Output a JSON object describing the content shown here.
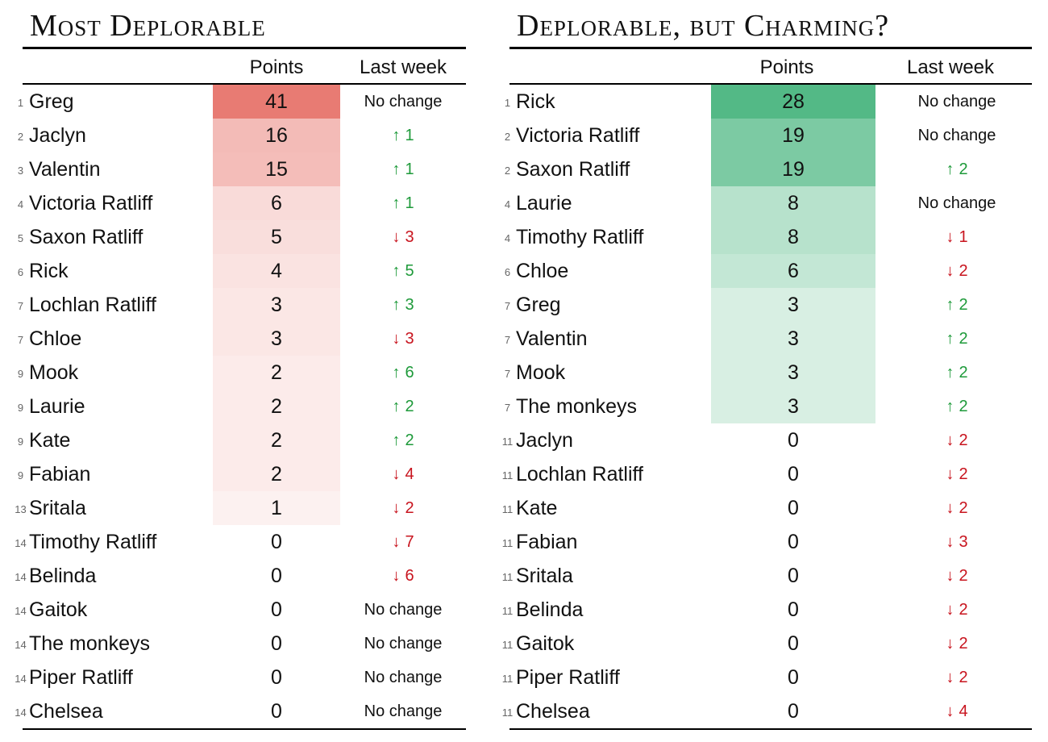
{
  "colors": {
    "up": "#1e9a3a",
    "down": "#c8141e",
    "left_scale": "#e87b73",
    "right_scale": "#53b986"
  },
  "left": {
    "title": "Most Deplorable",
    "points_header": "Points",
    "lastweek_header": "Last week",
    "max_points": 41,
    "rows": [
      {
        "rank": "1",
        "name": "Greg",
        "points": 41,
        "change": "No change",
        "dir": "none",
        "delta": ""
      },
      {
        "rank": "2",
        "name": "Jaclyn",
        "points": 16,
        "change": "",
        "dir": "up",
        "delta": "1"
      },
      {
        "rank": "3",
        "name": "Valentin",
        "points": 15,
        "change": "",
        "dir": "up",
        "delta": "1"
      },
      {
        "rank": "4",
        "name": "Victoria Ratliff",
        "points": 6,
        "change": "",
        "dir": "up",
        "delta": "1"
      },
      {
        "rank": "5",
        "name": "Saxon Ratliff",
        "points": 5,
        "change": "",
        "dir": "down",
        "delta": "3"
      },
      {
        "rank": "6",
        "name": "Rick",
        "points": 4,
        "change": "",
        "dir": "up",
        "delta": "5"
      },
      {
        "rank": "7",
        "name": "Lochlan Ratliff",
        "points": 3,
        "change": "",
        "dir": "up",
        "delta": "3"
      },
      {
        "rank": "7",
        "name": "Chloe",
        "points": 3,
        "change": "",
        "dir": "down",
        "delta": "3"
      },
      {
        "rank": "9",
        "name": "Mook",
        "points": 2,
        "change": "",
        "dir": "up",
        "delta": "6"
      },
      {
        "rank": "9",
        "name": "Laurie",
        "points": 2,
        "change": "",
        "dir": "up",
        "delta": "2"
      },
      {
        "rank": "9",
        "name": "Kate",
        "points": 2,
        "change": "",
        "dir": "up",
        "delta": "2"
      },
      {
        "rank": "9",
        "name": "Fabian",
        "points": 2,
        "change": "",
        "dir": "down",
        "delta": "4"
      },
      {
        "rank": "13",
        "name": "Sritala",
        "points": 1,
        "change": "",
        "dir": "down",
        "delta": "2"
      },
      {
        "rank": "14",
        "name": "Timothy Ratliff",
        "points": 0,
        "change": "",
        "dir": "down",
        "delta": "7"
      },
      {
        "rank": "14",
        "name": "Belinda",
        "points": 0,
        "change": "",
        "dir": "down",
        "delta": "6"
      },
      {
        "rank": "14",
        "name": "Gaitok",
        "points": 0,
        "change": "No change",
        "dir": "none",
        "delta": ""
      },
      {
        "rank": "14",
        "name": "The monkeys",
        "points": 0,
        "change": "No change",
        "dir": "none",
        "delta": ""
      },
      {
        "rank": "14",
        "name": "Piper Ratliff",
        "points": 0,
        "change": "No change",
        "dir": "none",
        "delta": ""
      },
      {
        "rank": "14",
        "name": "Chelsea",
        "points": 0,
        "change": "No change",
        "dir": "none",
        "delta": ""
      }
    ]
  },
  "right": {
    "title": "Deplorable, but Charming?",
    "points_header": "Points",
    "lastweek_header": "Last week",
    "max_points": 28,
    "rows": [
      {
        "rank": "1",
        "name": "Rick",
        "points": 28,
        "change": "No change",
        "dir": "none",
        "delta": ""
      },
      {
        "rank": "2",
        "name": "Victoria Ratliff",
        "points": 19,
        "change": "No change",
        "dir": "none",
        "delta": ""
      },
      {
        "rank": "2",
        "name": "Saxon Ratliff",
        "points": 19,
        "change": "",
        "dir": "up",
        "delta": "2"
      },
      {
        "rank": "4",
        "name": "Laurie",
        "points": 8,
        "change": "No change",
        "dir": "none",
        "delta": ""
      },
      {
        "rank": "4",
        "name": "Timothy Ratliff",
        "points": 8,
        "change": "",
        "dir": "down",
        "delta": "1"
      },
      {
        "rank": "6",
        "name": "Chloe",
        "points": 6,
        "change": "",
        "dir": "down",
        "delta": "2"
      },
      {
        "rank": "7",
        "name": "Greg",
        "points": 3,
        "change": "",
        "dir": "up",
        "delta": "2"
      },
      {
        "rank": "7",
        "name": "Valentin",
        "points": 3,
        "change": "",
        "dir": "up",
        "delta": "2"
      },
      {
        "rank": "7",
        "name": "Mook",
        "points": 3,
        "change": "",
        "dir": "up",
        "delta": "2"
      },
      {
        "rank": "7",
        "name": "The monkeys",
        "points": 3,
        "change": "",
        "dir": "up",
        "delta": "2"
      },
      {
        "rank": "11",
        "name": "Jaclyn",
        "points": 0,
        "change": "",
        "dir": "down",
        "delta": "2"
      },
      {
        "rank": "11",
        "name": "Lochlan Ratliff",
        "points": 0,
        "change": "",
        "dir": "down",
        "delta": "2"
      },
      {
        "rank": "11",
        "name": "Kate",
        "points": 0,
        "change": "",
        "dir": "down",
        "delta": "2"
      },
      {
        "rank": "11",
        "name": "Fabian",
        "points": 0,
        "change": "",
        "dir": "down",
        "delta": "3"
      },
      {
        "rank": "11",
        "name": "Sritala",
        "points": 0,
        "change": "",
        "dir": "down",
        "delta": "2"
      },
      {
        "rank": "11",
        "name": "Belinda",
        "points": 0,
        "change": "",
        "dir": "down",
        "delta": "2"
      },
      {
        "rank": "11",
        "name": "Gaitok",
        "points": 0,
        "change": "",
        "dir": "down",
        "delta": "2"
      },
      {
        "rank": "11",
        "name": "Piper Ratliff",
        "points": 0,
        "change": "",
        "dir": "down",
        "delta": "2"
      },
      {
        "rank": "11",
        "name": "Chelsea",
        "points": 0,
        "change": "",
        "dir": "down",
        "delta": "4"
      }
    ]
  }
}
